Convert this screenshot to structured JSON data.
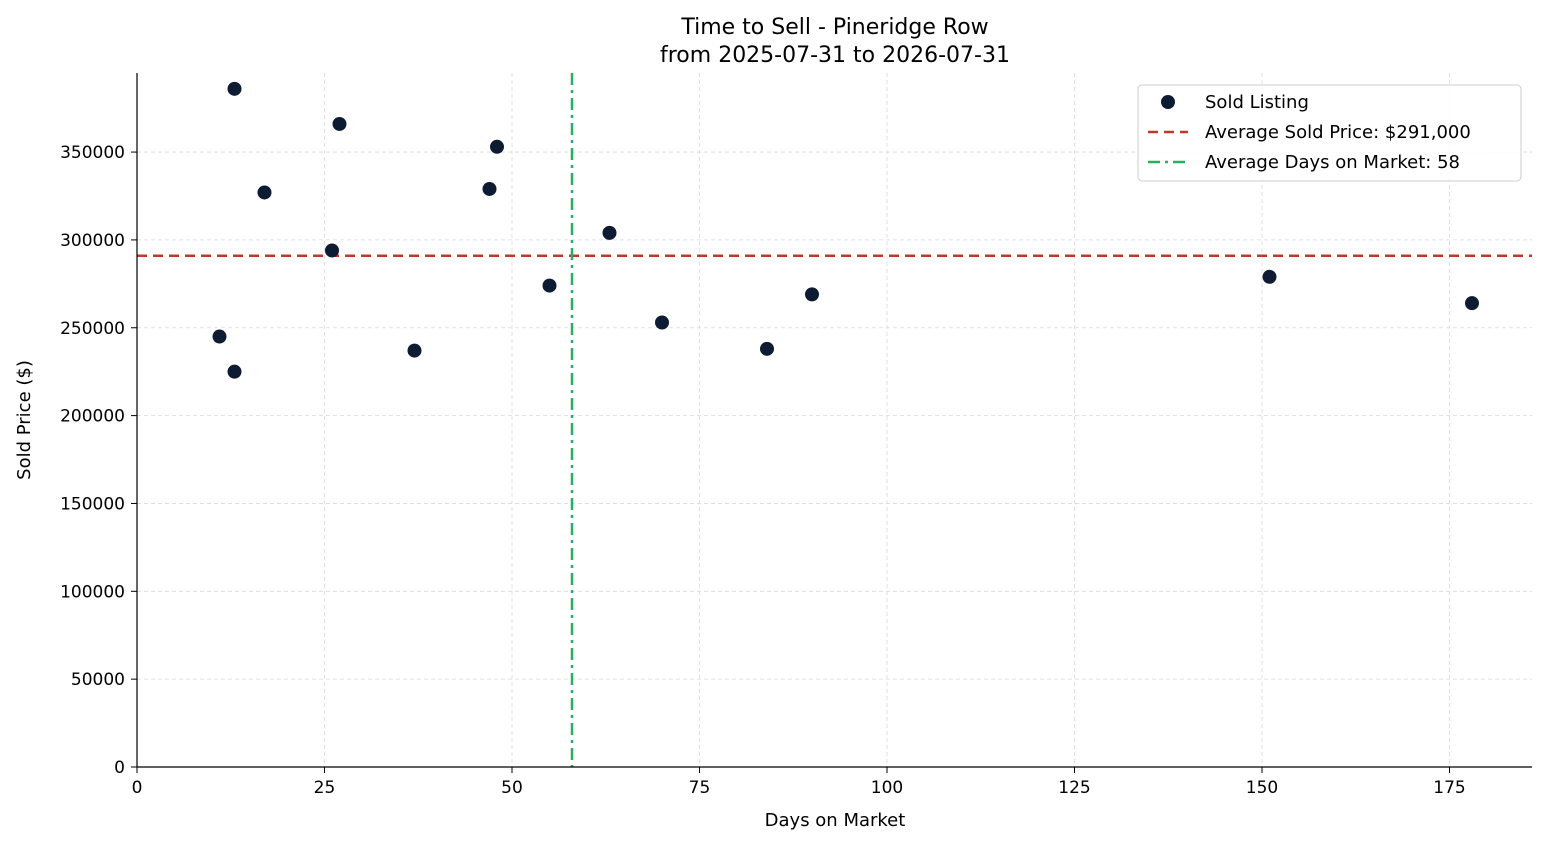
{
  "chart_data": {
    "type": "scatter",
    "title": "Time to Sell - Pineridge Row",
    "subtitle": "from 2025-07-31 to 2026-07-31",
    "xlabel": "Days on Market",
    "ylabel": "Sold Price ($)",
    "xlim": [
      0,
      186
    ],
    "ylim": [
      0,
      395000
    ],
    "xticks": [
      0,
      25,
      50,
      75,
      100,
      125,
      150,
      175
    ],
    "yticks": [
      0,
      50000,
      100000,
      150000,
      200000,
      250000,
      300000,
      350000
    ],
    "grid": true,
    "legend_position": "top-right",
    "series": [
      {
        "name": "Sold Listing",
        "color": "#0d1b33",
        "points": [
          {
            "x": 11,
            "y": 245000
          },
          {
            "x": 13,
            "y": 386000
          },
          {
            "x": 13,
            "y": 225000
          },
          {
            "x": 17,
            "y": 327000
          },
          {
            "x": 26,
            "y": 294000
          },
          {
            "x": 27,
            "y": 366000
          },
          {
            "x": 37,
            "y": 237000
          },
          {
            "x": 47,
            "y": 329000
          },
          {
            "x": 48,
            "y": 353000
          },
          {
            "x": 55,
            "y": 274000
          },
          {
            "x": 63,
            "y": 304000
          },
          {
            "x": 70,
            "y": 253000
          },
          {
            "x": 84,
            "y": 238000
          },
          {
            "x": 90,
            "y": 269000
          },
          {
            "x": 151,
            "y": 279000
          },
          {
            "x": 178,
            "y": 264000
          }
        ]
      }
    ],
    "reference_lines": [
      {
        "name": "Average Sold Price: $291,000",
        "orientation": "horizontal",
        "value": 291000,
        "style": "dashed",
        "color": "#c0392b"
      },
      {
        "name": "Average Days on Market: 58",
        "orientation": "vertical",
        "value": 58,
        "style": "dashdot",
        "color": "#27ae60"
      }
    ]
  }
}
